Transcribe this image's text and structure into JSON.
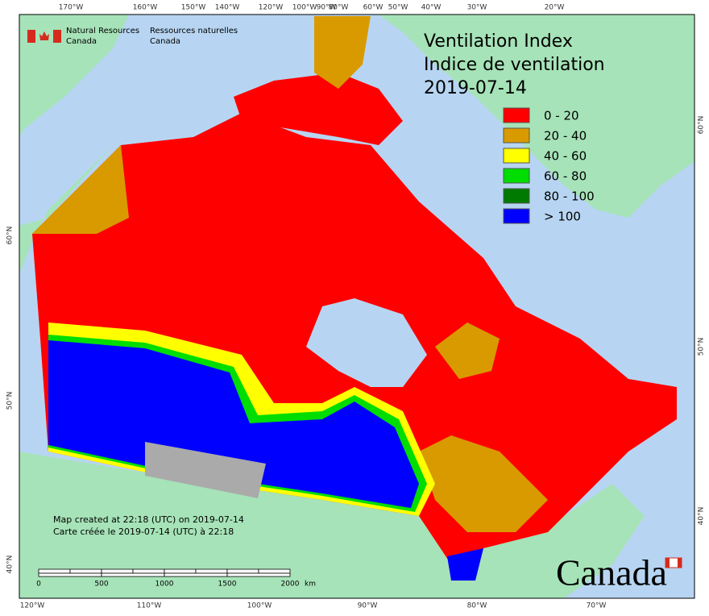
{
  "header": {
    "title": "Ventilation Index",
    "title_fr": "Indice de ventilation",
    "date": "2019-07-14"
  },
  "signature": {
    "en": [
      "Natural Resources",
      "Canada"
    ],
    "fr": [
      "Ressources naturelles",
      "Canada"
    ]
  },
  "legend": [
    {
      "label": "0 - 20",
      "color": "#ff0000"
    },
    {
      "label": "20 - 40",
      "color": "#d99a00"
    },
    {
      "label": "40 - 60",
      "color": "#ffff00"
    },
    {
      "label": "60 - 80",
      "color": "#00dd00"
    },
    {
      "label": "80 - 100",
      "color": "#007a00"
    },
    {
      "label": "> 100",
      "color": "#0000ff"
    }
  ],
  "top_axis_labels": [
    "170°W",
    "160°W",
    "150°W",
    "140°W",
    "120°W",
    "100°W",
    "90°W",
    "80°W",
    "60°W",
    "50°W",
    "40°W",
    "30°W",
    "20°W"
  ],
  "bottom_axis_labels": [
    "120°W",
    "110°W",
    "100°W",
    "90°W",
    "80°W",
    "70°W"
  ],
  "left_axis_labels": [
    "60°N",
    "50°N",
    "40°N"
  ],
  "right_axis_labels": [
    "60°N",
    "50°N",
    "40°N"
  ],
  "notes": [
    "Map created at 22:18 (UTC) on 2019-07-14",
    "Carte créée le 2019-07-14 (UTC) à 22:18"
  ],
  "scale_bar": {
    "labels": [
      "0",
      "500",
      "1000",
      "1500",
      "2000"
    ],
    "unit": "km"
  },
  "wordmark": "Canada"
}
